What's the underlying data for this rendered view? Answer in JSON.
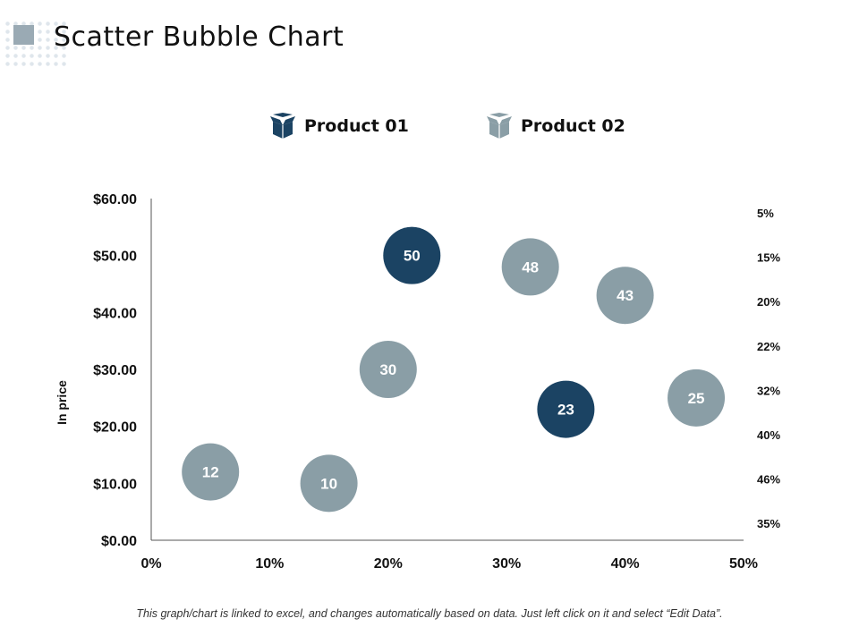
{
  "title": "Scatter Bubble Chart",
  "footer": "This graph/chart is linked to excel, and changes automatically based on data. Just left click on it and select “Edit Data”.",
  "legend": [
    {
      "label": "Product 01",
      "icon": "box-icon",
      "color": "#1b4363"
    },
    {
      "label": "Product 02",
      "icon": "box-icon",
      "color": "#8a9ea6"
    }
  ],
  "chart_data": {
    "type": "scatter",
    "title": "",
    "xlabel": "",
    "ylabel": "In price",
    "xlim": [
      0,
      50
    ],
    "ylim": [
      0,
      60
    ],
    "x_ticks": [
      "0%",
      "10%",
      "20%",
      "30%",
      "40%",
      "50%"
    ],
    "y_ticks": [
      "$0.00",
      "$10.00",
      "$20.00",
      "$30.00",
      "$40.00",
      "$50.00",
      "$60.00"
    ],
    "grid": false,
    "right_labels": [
      "5%",
      "15%",
      "20%",
      "22%",
      "32%",
      "40%",
      "46%",
      "35%"
    ],
    "series": [
      {
        "name": "Product 01",
        "color": "#1b4363",
        "points": [
          {
            "x": 22,
            "y": 50,
            "label": "50"
          },
          {
            "x": 35,
            "y": 23,
            "label": "23"
          }
        ]
      },
      {
        "name": "Product 02",
        "color": "#8a9ea6",
        "points": [
          {
            "x": 5,
            "y": 12,
            "label": "12"
          },
          {
            "x": 15,
            "y": 10,
            "label": "10"
          },
          {
            "x": 20,
            "y": 30,
            "label": "30"
          },
          {
            "x": 32,
            "y": 48,
            "label": "48"
          },
          {
            "x": 40,
            "y": 43,
            "label": "43"
          },
          {
            "x": 46,
            "y": 25,
            "label": "25"
          }
        ]
      }
    ]
  }
}
